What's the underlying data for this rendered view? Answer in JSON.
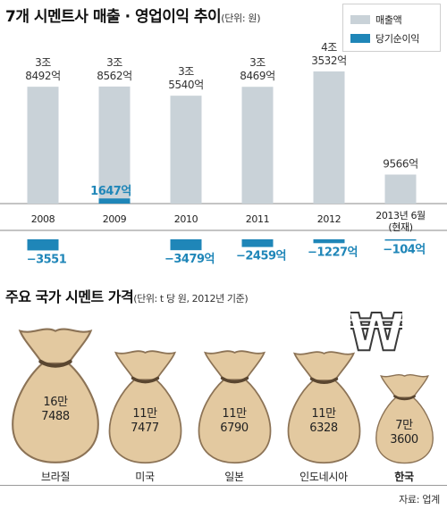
{
  "section1": {
    "title": "7개 시멘트사 매출 · 영업이익 추이",
    "unit": "(단위: 원)"
  },
  "legend": {
    "revenue": "매출액",
    "net_income": "당기순이익"
  },
  "colors": {
    "revenue": "#c9d2d8",
    "net_income": "#1f86b8",
    "bag_fill": "#e3c9a0",
    "bag_stroke": "#8c7356",
    "tie": "#5a4630"
  },
  "chart_data": [
    {
      "type": "bar",
      "title": "7개 시멘트사 매출 · 영업이익 추이",
      "unit": "단위: 원",
      "categories": [
        "2008",
        "2009",
        "2010",
        "2011",
        "2012",
        "2013년 6월 (현재)"
      ],
      "category_lines": [
        [
          "2008"
        ],
        [
          "2009"
        ],
        [
          "2010"
        ],
        [
          "2011"
        ],
        [
          "2012"
        ],
        [
          "2013년 6월",
          "(현재)"
        ]
      ],
      "series": [
        {
          "name": "매출액",
          "values": [
            38492,
            38562,
            35540,
            38469,
            43532,
            9566
          ],
          "value_unit": "억원",
          "labels": [
            [
              "3조",
              "8492억"
            ],
            [
              "3조",
              "8562억"
            ],
            [
              "3조",
              "5540억"
            ],
            [
              "3조",
              "8469억"
            ],
            [
              "4조",
              "3532억"
            ],
            [
              "9566억"
            ]
          ]
        },
        {
          "name": "당기순이익",
          "values": [
            -3551,
            1647,
            -3479,
            -2459,
            -1227,
            -104
          ],
          "value_unit": "억원",
          "labels": [
            "−3551",
            "1647억",
            "−3479억",
            "−2459억",
            "−1227억",
            "−104억"
          ]
        }
      ]
    },
    {
      "type": "bar",
      "title": "주요 국가 시멘트 가격",
      "unit": "단위: t 당 원, 2012년 기준",
      "categories": [
        "브라질",
        "미국",
        "일본",
        "인도네시아",
        "한국"
      ],
      "values": [
        167488,
        117477,
        116790,
        116328,
        73600
      ],
      "labels": [
        [
          "16만",
          "7488"
        ],
        [
          "11만",
          "7477"
        ],
        [
          "11만",
          "6790"
        ],
        [
          "11만",
          "6328"
        ],
        [
          "7만",
          "3600"
        ]
      ]
    }
  ],
  "section2": {
    "title": "주요 국가 시멘트 가격",
    "unit": "(단위: t 당 원, 2012년 기준)",
    "currency_symbol": "₩"
  },
  "source": "자료: 업계"
}
